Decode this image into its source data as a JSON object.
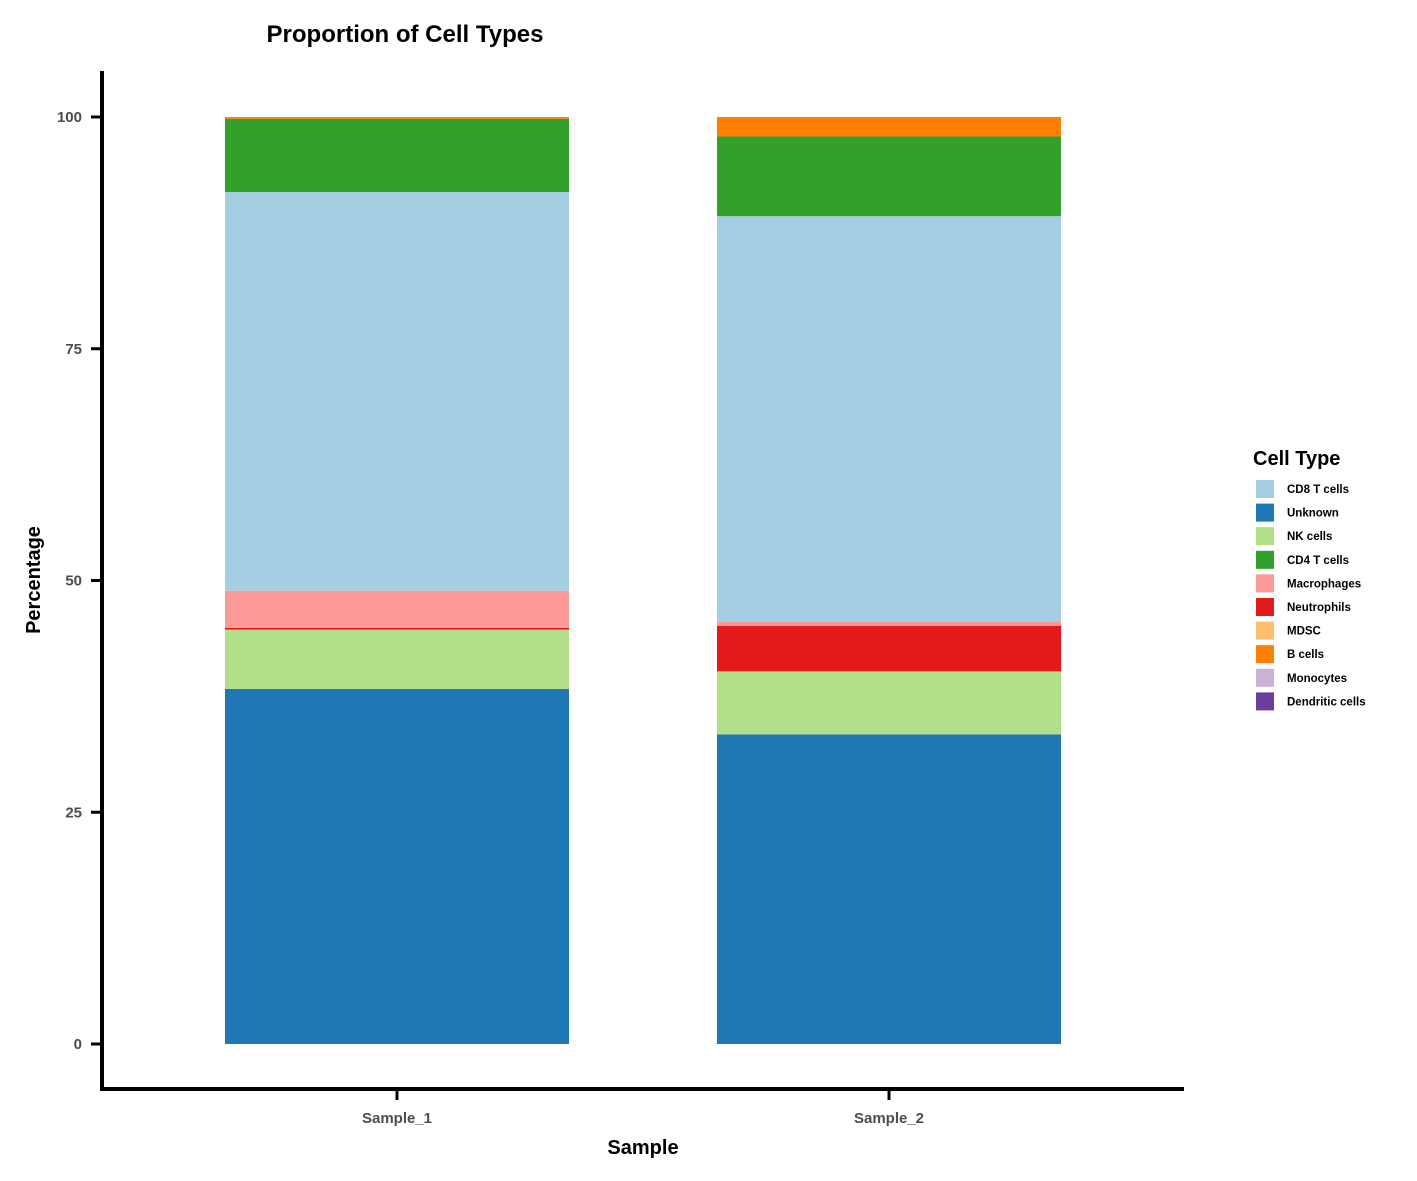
{
  "chart_data": {
    "type": "bar",
    "stacked": true,
    "title": "Proportion of Cell Types",
    "xlabel": "Sample",
    "ylabel": "Percentage",
    "ylim": [
      0,
      100
    ],
    "yticks": [
      0,
      25,
      50,
      75,
      100
    ],
    "categories": [
      "Sample_1",
      "Sample_2"
    ],
    "legend_title": "Cell Type",
    "legend_position": "right",
    "grid": false,
    "stack_order_bottom_to_top": [
      "Unknown",
      "NK cells",
      "Neutrophils",
      "Macrophages",
      "CD8 T cells",
      "CD4 T cells",
      "B cells"
    ],
    "series": [
      {
        "name": "CD8 T cells",
        "color": "#A6CEE3",
        "values": [
          43.0,
          43.7
        ]
      },
      {
        "name": "Unknown",
        "color": "#1F78B4",
        "values": [
          38.3,
          33.4
        ]
      },
      {
        "name": "NK cells",
        "color": "#B2DF8A",
        "values": [
          6.4,
          6.8
        ]
      },
      {
        "name": "CD4 T cells",
        "color": "#33A02C",
        "values": [
          7.9,
          8.6
        ]
      },
      {
        "name": "Macrophages",
        "color": "#FB9A99",
        "values": [
          4.0,
          0.5
        ]
      },
      {
        "name": "Neutrophils",
        "color": "#E31A1C",
        "values": [
          0.2,
          4.9
        ]
      },
      {
        "name": "MDSC",
        "color": "#FDBF6F",
        "values": [
          0.0,
          0.0
        ]
      },
      {
        "name": "B cells",
        "color": "#FF7F00",
        "values": [
          0.2,
          2.1
        ]
      },
      {
        "name": "Monocytes",
        "color": "#CAB2D6",
        "values": [
          0.0,
          0.0
        ]
      },
      {
        "name": "Dendritic cells",
        "color": "#6A3D9A",
        "values": [
          0.0,
          0.0
        ]
      }
    ]
  }
}
